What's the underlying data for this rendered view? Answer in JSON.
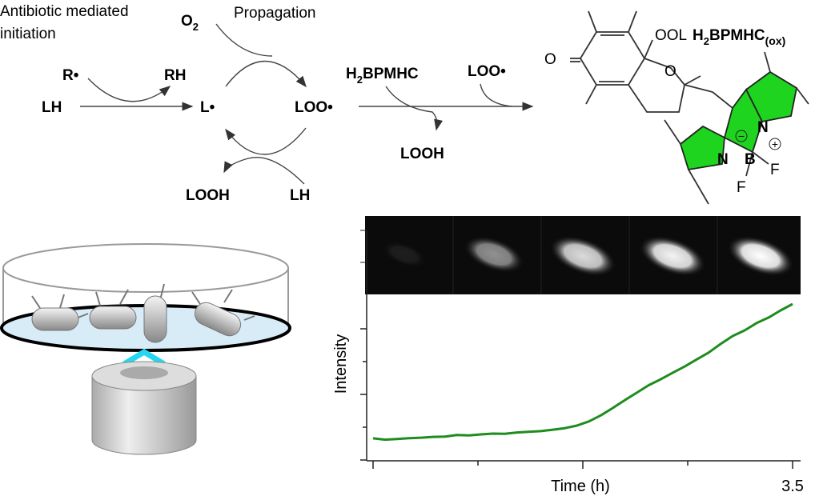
{
  "scheme": {
    "initiation": [
      "Antibiotic mediated",
      "initiation"
    ],
    "oxygen": {
      "main": "O",
      "sub": "2"
    },
    "propagation": "Propagation",
    "r_radical": "R•",
    "rh": "RH",
    "lh_start": "LH",
    "l_radical": "L•",
    "loo_radical": "LOO•",
    "looh_cycle": "LOOH",
    "lh_cycle": "LH",
    "probe": {
      "main": "H",
      "sub": "2",
      "rest": "BPMHC"
    },
    "loo_trap": "LOO•",
    "looh_trap": "LOOH",
    "product": {
      "main": "H",
      "sub": "2",
      "rest": "BPMHC",
      "ox": "(ox)"
    },
    "structure": {
      "ketone_o": "O",
      "peroxide": "OOL",
      "ring_o": "O",
      "n1": "N",
      "n2": "N",
      "b": "B",
      "f1": "F",
      "f2": "F",
      "minus": "−",
      "plus": "+"
    }
  },
  "chart_data": {
    "type": "line",
    "x_label": "Time (h)",
    "y_label": "Intensity",
    "xlim": [
      -0.05,
      3.55
    ],
    "ylim": [
      0,
      100
    ],
    "xticks": [
      {
        "value": 0,
        "label": null
      },
      {
        "value": 0.875,
        "label": null
      },
      {
        "value": 1.75,
        "label": null
      },
      {
        "value": 2.625,
        "label": null
      },
      3.5
    ],
    "yticks": [
      {
        "value": 0,
        "label": null
      },
      {
        "value": 20,
        "label": null
      },
      {
        "value": 40,
        "label": null
      },
      {
        "value": 60,
        "label": null
      },
      {
        "value": 80,
        "label": null
      }
    ],
    "x": [
      0,
      0.1,
      0.2,
      0.3,
      0.4,
      0.5,
      0.6,
      0.7,
      0.8,
      0.9,
      1.0,
      1.1,
      1.2,
      1.3,
      1.4,
      1.5,
      1.6,
      1.7,
      1.8,
      1.9,
      2.0,
      2.1,
      2.2,
      2.3,
      2.4,
      2.5,
      2.6,
      2.7,
      2.8,
      2.9,
      3.0,
      3.1,
      3.2,
      3.3,
      3.4,
      3.5
    ],
    "series": [
      {
        "color": "#1e8c1e",
        "values": [
          13.2,
          12.4,
          12.8,
          13.3,
          13.6,
          14.1,
          14.3,
          15.2,
          15.0,
          15.6,
          16.1,
          16.0,
          16.8,
          17.2,
          17.6,
          18.5,
          19.4,
          21.0,
          23.5,
          27.2,
          31.7,
          36.5,
          41.0,
          45.6,
          49.2,
          53.2,
          57.0,
          61.3,
          65.5,
          70.8,
          75.6,
          79.0,
          83.5,
          86.9,
          91.2,
          95.1
        ]
      }
    ]
  }
}
